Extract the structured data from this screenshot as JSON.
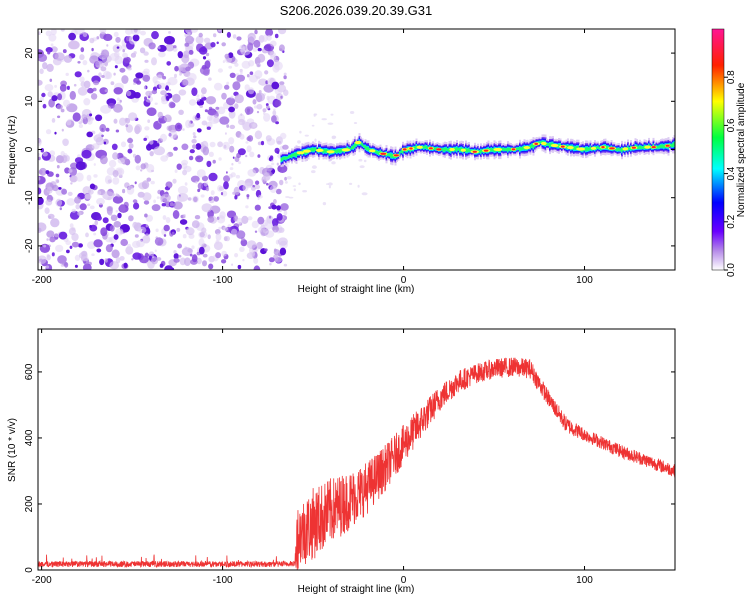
{
  "title": "S206.2026.039.20.39.G31",
  "colors": {
    "snr_line": "#ee3333",
    "frame": "#000000",
    "background": "#ffffff"
  },
  "chart_data": [
    {
      "type": "heatmap",
      "name": "spectrogram",
      "title": "S206.2026.039.20.39.G31",
      "xlabel": "Height of straight line (km)",
      "ylabel": "Frequency (Hz)",
      "xlim": [
        -202,
        150
      ],
      "ylim": [
        -25,
        25
      ],
      "xticks": [
        -200,
        -100,
        0,
        100
      ],
      "yticks": [
        -20,
        -10,
        0,
        10,
        20
      ],
      "xtick_labels": [
        "-200",
        "-100",
        "0",
        "100"
      ],
      "ytick_labels": [
        "-20",
        "-10",
        "0",
        "10",
        "20"
      ],
      "noise_region_x": [
        -202,
        -65
      ],
      "signal_start_x": -68,
      "signal_track": {
        "x": [
          -68,
          -60,
          -50,
          -40,
          -30,
          -25,
          -20,
          -10,
          -5,
          0,
          10,
          20,
          30,
          40,
          50,
          60,
          70,
          75,
          80,
          90,
          100,
          110,
          120,
          130,
          140,
          150
        ],
        "freq": [
          -2,
          -1,
          0,
          -0.5,
          0,
          1.5,
          0,
          -1,
          -1.5,
          0,
          0.5,
          0,
          0,
          -0.5,
          0,
          0,
          0.5,
          1.5,
          1,
          0.5,
          0,
          0.5,
          0,
          0.5,
          0.5,
          1
        ]
      },
      "colorbar": {
        "label": "Normalized spectral amplitude",
        "range": [
          0,
          1
        ],
        "ticks": [
          0.0,
          0.2,
          0.4,
          0.6,
          0.8
        ],
        "tick_labels": [
          "0.0",
          "0.2",
          "0.4",
          "0.6",
          "0.8"
        ],
        "colormap": [
          "#ffffff",
          "#8a2be2",
          "#0000ff",
          "#00ffff",
          "#00ff00",
          "#ffff00",
          "#ff0000",
          "#ff1493"
        ]
      }
    },
    {
      "type": "line",
      "name": "snr",
      "xlabel": "Height of straight line (km)",
      "ylabel": "SNR (10 * v/v)",
      "xlim": [
        -202,
        150
      ],
      "ylim": [
        0,
        730
      ],
      "xticks": [
        -200,
        -100,
        0,
        100
      ],
      "yticks": [
        0,
        200,
        400,
        600
      ],
      "xtick_labels": [
        "-200",
        "-100",
        "0",
        "100"
      ],
      "ytick_labels": [
        "0",
        "200",
        "400",
        "600"
      ],
      "series": [
        {
          "name": "SNR",
          "envelope_x": [
            -202,
            -60,
            -59,
            -50,
            -40,
            -30,
            -20,
            -10,
            0,
            10,
            20,
            30,
            40,
            50,
            60,
            70,
            80,
            90,
            100,
            110,
            120,
            130,
            140,
            150
          ],
          "envelope_mean": [
            20,
            20,
            100,
            140,
            180,
            210,
            250,
            310,
            380,
            450,
            520,
            570,
            595,
            610,
            615,
            610,
            520,
            440,
            410,
            385,
            360,
            340,
            320,
            300
          ],
          "noise_amplitude": [
            10,
            10,
            100,
            110,
            100,
            90,
            80,
            70,
            60,
            50,
            40,
            35,
            30,
            30,
            30,
            30,
            25,
            25,
            20,
            20,
            20,
            20,
            20,
            20
          ]
        }
      ]
    }
  ]
}
